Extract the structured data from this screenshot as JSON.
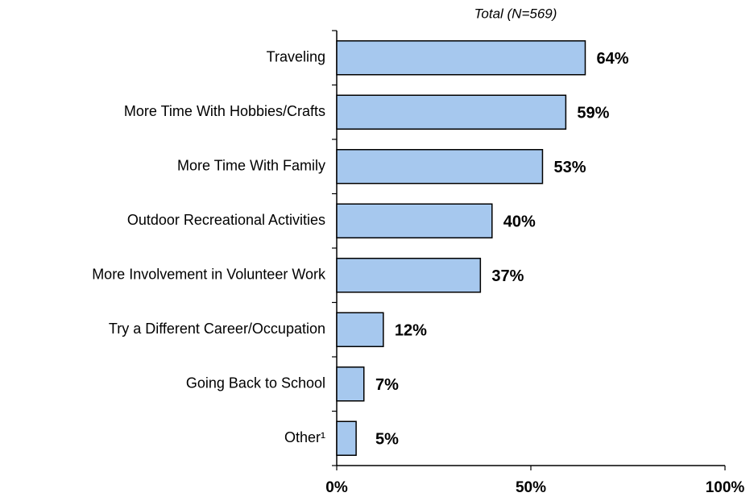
{
  "chart_data": {
    "type": "bar",
    "orientation": "horizontal",
    "title": "Total (N=569)",
    "categories": [
      "Traveling",
      "More Time With Hobbies/Crafts",
      "More Time With Family",
      "Outdoor Recreational Activities",
      "More Involvement in Volunteer Work",
      "Try a Different Career/Occupation",
      "Going Back to School",
      "Other¹"
    ],
    "values": [
      64,
      59,
      53,
      40,
      37,
      12,
      7,
      5
    ],
    "value_labels": [
      "64%",
      "59%",
      "53%",
      "40%",
      "37%",
      "12%",
      "7%",
      "5%"
    ],
    "color": "#a6c8ee",
    "xlim": [
      0,
      100
    ],
    "xticks": [
      {
        "value": 0,
        "label": "0%"
      },
      {
        "value": 50,
        "label": "50%"
      },
      {
        "value": 100,
        "label": "100%"
      }
    ]
  }
}
